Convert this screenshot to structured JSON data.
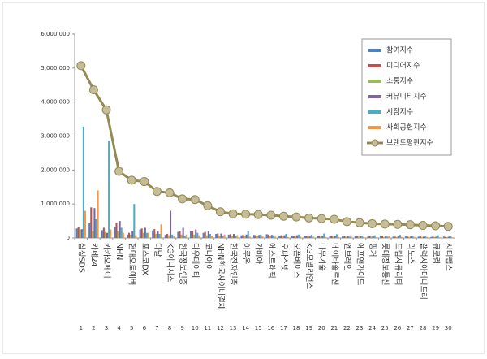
{
  "chart_data": {
    "type": "bar",
    "categories": [
      "삼성SDS",
      "카페24",
      "카카오페이",
      "NHN",
      "현대오토에버",
      "포스코DX",
      "다날",
      "KG이니시스",
      "한국정보인증",
      "다우데이타",
      "코나아이",
      "NHN한국사이버결제",
      "한국전자인증",
      "이루온",
      "가비아",
      "에스트래픽",
      "오파스넷",
      "오픈베이스",
      "KG모빌리언스",
      "나무기술",
      "데이타솔루션",
      "엠브레인",
      "에프앤가이드",
      "핑거",
      "롯데정보통신",
      "드림시큐리티",
      "리노스",
      "갤럭시아머니트리",
      "큐로컴",
      "시티랩스"
    ],
    "ranks": [
      1,
      2,
      3,
      4,
      5,
      6,
      7,
      8,
      9,
      10,
      11,
      12,
      13,
      14,
      15,
      16,
      17,
      18,
      19,
      20,
      21,
      22,
      23,
      24,
      25,
      26,
      27,
      28,
      29,
      30
    ],
    "ylim": [
      0,
      6000000
    ],
    "yticks": [
      0,
      {
        "value": 1000000,
        "label": "1,000,000"
      },
      {
        "value": 2000000,
        "label": "2,000,000"
      },
      {
        "value": 3000000,
        "label": "3,000,000"
      },
      {
        "value": 4000000,
        "label": "4,000,000"
      },
      {
        "value": 5000000,
        "label": "5,000,000"
      },
      {
        "value": 6000000,
        "label": "6,000,000"
      }
    ],
    "legend": "top-right",
    "series": [
      {
        "name": "참여지수",
        "type": "bar",
        "color": "#4f81bd",
        "values": [
          280000,
          430000,
          230000,
          330000,
          100000,
          250000,
          220000,
          90000,
          180000,
          200000,
          150000,
          120000,
          100000,
          80000,
          90000,
          110000,
          60000,
          70000,
          60000,
          70000,
          50000,
          60000,
          50000,
          40000,
          60000,
          40000,
          50000,
          40000,
          30000,
          40000
        ]
      },
      {
        "name": "미디어지수",
        "type": "bar",
        "color": "#c0504d",
        "values": [
          310000,
          900000,
          300000,
          450000,
          150000,
          280000,
          260000,
          120000,
          200000,
          210000,
          180000,
          130000,
          110000,
          90000,
          80000,
          100000,
          80000,
          70000,
          70000,
          60000,
          60000,
          50000,
          50000,
          50000,
          50000,
          40000,
          40000,
          50000,
          40000,
          30000
        ]
      },
      {
        "name": "소통지수",
        "type": "bar",
        "color": "#9bbb59",
        "values": [
          250000,
          200000,
          180000,
          200000,
          100000,
          150000,
          120000,
          80000,
          100000,
          100000,
          80000,
          70000,
          60000,
          60000,
          60000,
          50000,
          50000,
          40000,
          40000,
          40000,
          40000,
          40000,
          40000,
          40000,
          30000,
          30000,
          30000,
          30000,
          30000,
          30000
        ]
      },
      {
        "name": "커뮤니티지수",
        "type": "bar",
        "color": "#8064a2",
        "values": [
          260000,
          880000,
          150000,
          500000,
          200000,
          300000,
          200000,
          800000,
          300000,
          250000,
          200000,
          130000,
          120000,
          100000,
          90000,
          90000,
          80000,
          80000,
          70000,
          60000,
          60000,
          60000,
          50000,
          50000,
          50000,
          50000,
          50000,
          40000,
          40000,
          40000
        ]
      },
      {
        "name": "시장지수",
        "type": "bar",
        "color": "#4bacc6",
        "values": [
          3280000,
          550000,
          2860000,
          300000,
          1000000,
          150000,
          120000,
          100000,
          60000,
          150000,
          120000,
          60000,
          60000,
          200000,
          100000,
          80000,
          120000,
          100000,
          90000,
          130000,
          110000,
          40000,
          60000,
          80000,
          40000,
          90000,
          60000,
          60000,
          80000,
          50000
        ]
      },
      {
        "name": "사회공헌지수",
        "type": "bar",
        "color": "#f79646",
        "values": [
          800000,
          1400000,
          250000,
          150000,
          80000,
          150000,
          400000,
          50000,
          100000,
          80000,
          70000,
          100000,
          80000,
          40000,
          50000,
          40000,
          30000,
          40000,
          40000,
          30000,
          30000,
          40000,
          30000,
          20000,
          60000,
          30000,
          30000,
          30000,
          20000,
          20000
        ]
      },
      {
        "name": "브랜드평판지수",
        "type": "line",
        "color": "#948a54",
        "values": [
          5070000,
          4360000,
          3770000,
          1960000,
          1700000,
          1660000,
          1370000,
          1330000,
          1150000,
          1130000,
          950000,
          770000,
          710000,
          700000,
          690000,
          670000,
          640000,
          620000,
          590000,
          570000,
          550000,
          480000,
          450000,
          420000,
          410000,
          400000,
          390000,
          370000,
          360000,
          340000
        ]
      }
    ]
  }
}
